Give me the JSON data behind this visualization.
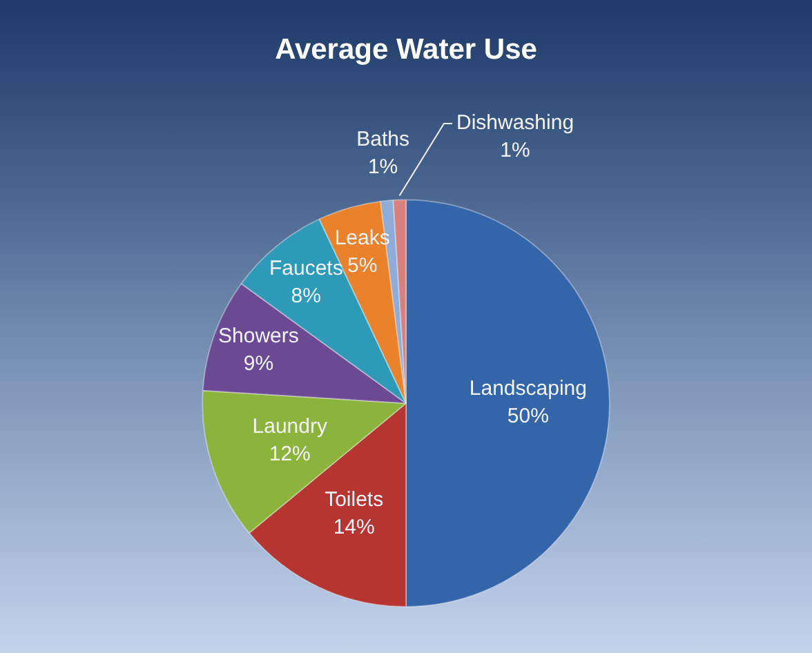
{
  "chart_data": {
    "type": "pie",
    "title": "Average Water Use",
    "categories": [
      "Landscaping",
      "Toilets",
      "Laundry",
      "Showers",
      "Faucets",
      "Leaks",
      "Baths",
      "Dishwashing"
    ],
    "values": [
      50,
      14,
      12,
      9,
      8,
      5,
      1,
      1
    ],
    "value_labels": [
      "50%",
      "14%",
      "12%",
      "9%",
      "8%",
      "5%",
      "1%",
      "1%"
    ],
    "colors": [
      "#3465a8",
      "#b73531",
      "#8cb43c",
      "#6b4a93",
      "#2d9ab8",
      "#e9822a",
      "#8fabd8",
      "#d9807c"
    ],
    "legend": false
  }
}
